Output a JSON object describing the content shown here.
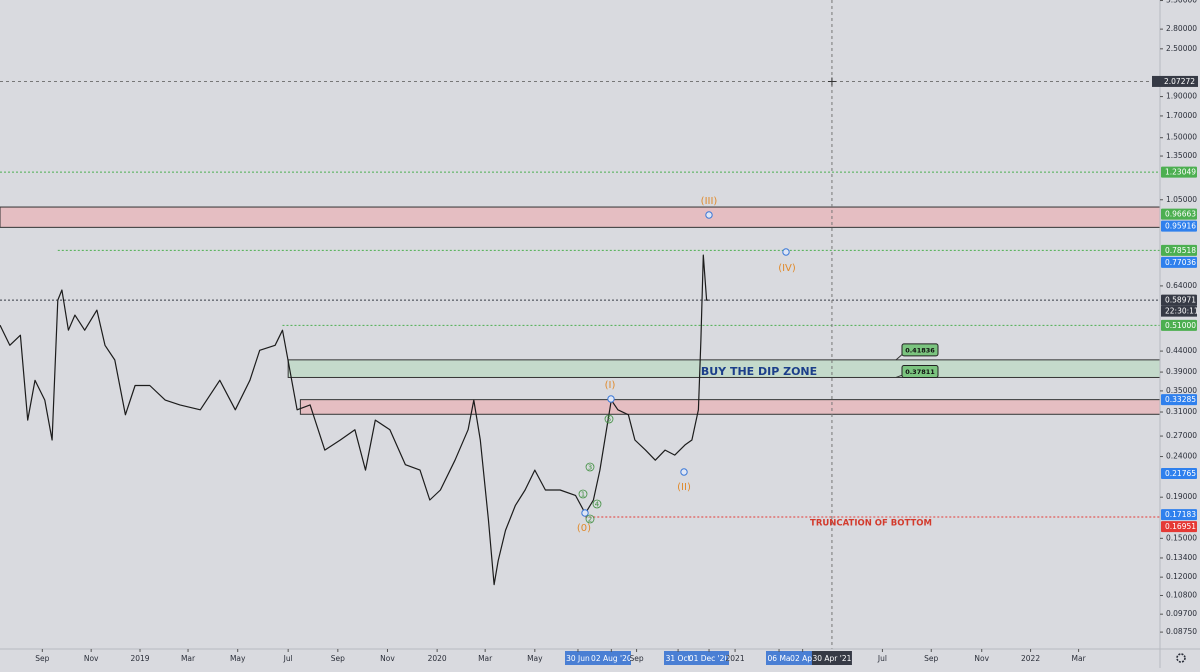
{
  "chart_data": {
    "type": "line",
    "log_scale": true,
    "color": "#1c1c1c",
    "xlim": [
      -172,
      1253
    ],
    "ylim": [
      0.0794,
      3.31
    ],
    "x": [
      -172,
      -160,
      -147,
      -138,
      -129,
      -117,
      -108,
      -101,
      -96,
      -88,
      -80,
      -68,
      -53,
      -43,
      -31,
      -18,
      -6,
      12,
      31,
      49,
      74,
      98,
      117,
      135,
      147,
      166,
      175,
      184,
      193,
      209,
      227,
      246,
      264,
      277,
      289,
      307,
      326,
      344,
      356,
      369,
      387,
      403,
      410,
      418,
      428,
      435,
      440,
      449,
      461,
      473,
      485,
      498,
      516,
      535,
      547,
      557,
      565,
      571,
      579,
      587,
      600,
      608,
      621,
      633,
      645,
      657,
      670,
      678,
      686,
      689,
      692,
      696,
      698
    ],
    "values": [
      0.511,
      0.455,
      0.482,
      0.296,
      0.372,
      0.332,
      0.264,
      0.59,
      0.625,
      0.496,
      0.541,
      0.496,
      0.557,
      0.455,
      0.418,
      0.305,
      0.361,
      0.361,
      0.332,
      0.323,
      0.314,
      0.372,
      0.314,
      0.372,
      0.442,
      0.455,
      0.496,
      0.395,
      0.314,
      0.323,
      0.249,
      0.264,
      0.28,
      0.222,
      0.296,
      0.28,
      0.229,
      0.222,
      0.187,
      0.198,
      0.235,
      0.28,
      0.332,
      0.264,
      0.167,
      0.115,
      0.132,
      0.157,
      0.181,
      0.198,
      0.222,
      0.198,
      0.198,
      0.192,
      0.173,
      0.187,
      0.222,
      0.264,
      0.332,
      0.314,
      0.305,
      0.264,
      0.249,
      0.235,
      0.249,
      0.242,
      0.257,
      0.264,
      0.314,
      0.469,
      0.764,
      0.59,
      0.59
    ],
    "xticks": [
      {
        "value": -120,
        "label": "Sep"
      },
      {
        "value": -60,
        "label": "Nov"
      },
      {
        "value": 0,
        "label": "2019"
      },
      {
        "value": 59,
        "label": "Mar"
      },
      {
        "value": 120,
        "label": "May"
      },
      {
        "value": 182,
        "label": "Jul"
      },
      {
        "value": 243,
        "label": "Sep"
      },
      {
        "value": 304,
        "label": "Nov"
      },
      {
        "value": 365,
        "label": "2020"
      },
      {
        "value": 424,
        "label": "Mar"
      },
      {
        "value": 485,
        "label": "May"
      },
      {
        "value": 538,
        "label": "30 Jun"
      },
      {
        "value": 579,
        "label": "02 Aug '20"
      },
      {
        "value": 610,
        "label": "Sep"
      },
      {
        "value": 661,
        "label": "31 Oct"
      },
      {
        "value": 699,
        "label": "01 Dec '20"
      },
      {
        "value": 731,
        "label": "2021"
      },
      {
        "value": 785,
        "label": "06 Ma"
      },
      {
        "value": 814,
        "label": "02 Apr"
      },
      {
        "value": 912,
        "label": "Jul"
      },
      {
        "value": 972,
        "label": "Sep"
      },
      {
        "value": 1034,
        "label": "Nov"
      },
      {
        "value": 1094,
        "label": "2022"
      },
      {
        "value": 1153,
        "label": "Mar"
      }
    ],
    "yticks": [
      {
        "value": 3.3,
        "label": "3.30000"
      },
      {
        "value": 2.8,
        "label": "2.80000"
      },
      {
        "value": 2.5,
        "label": "2.50000"
      },
      {
        "value": 1.9,
        "label": "1.90000"
      },
      {
        "value": 1.7,
        "label": "1.70000"
      },
      {
        "value": 1.5,
        "label": "1.50000"
      },
      {
        "value": 1.35,
        "label": "1.35000"
      },
      {
        "value": 1.05,
        "label": "1.05000"
      },
      {
        "value": 0.64,
        "label": "0.64000"
      },
      {
        "value": 0.44,
        "label": "0.44000"
      },
      {
        "value": 0.39,
        "label": "0.39000"
      },
      {
        "value": 0.35,
        "label": "0.35000"
      },
      {
        "value": 0.31,
        "label": "0.31000"
      },
      {
        "value": 0.27,
        "label": "0.27000"
      },
      {
        "value": 0.24,
        "label": "0.24000"
      },
      {
        "value": 0.19,
        "label": "0.19000"
      },
      {
        "value": 0.15,
        "label": "0.15000"
      },
      {
        "value": 0.134,
        "label": "0.13400"
      },
      {
        "value": 0.12,
        "label": "0.12000"
      },
      {
        "value": 0.108,
        "label": "0.10800"
      },
      {
        "value": 0.097,
        "label": "0.09700"
      },
      {
        "value": 0.0875,
        "label": "0.08750"
      }
    ],
    "levels": [
      {
        "value": 1.23049,
        "label": "1.23049",
        "color": "#4caf50",
        "line": true
      },
      {
        "value": 0.96663,
        "label": "0.96663",
        "color": "#4caf50",
        "line": false
      },
      {
        "value": 0.95916,
        "label": "0.95916",
        "color": "#2f80ed",
        "line": false
      },
      {
        "value": 0.78518,
        "label": "0.78518",
        "color": "#4caf50",
        "line": true,
        "x0": -101
      },
      {
        "value": 0.77036,
        "label": "0.77036",
        "color": "#2f80ed",
        "line": false
      },
      {
        "value": 0.58971,
        "label": "0.58971",
        "color": "#363a45",
        "line": true
      },
      {
        "value": 0.51,
        "label": "0.51000",
        "color": "#4caf50",
        "line": true,
        "x0": 175
      },
      {
        "value": 0.33285,
        "label": "0.33285",
        "color": "#2f80ed",
        "line": false
      },
      {
        "value": 0.21765,
        "label": "0.21765",
        "color": "#2f80ed",
        "line": false
      },
      {
        "value": 0.17183,
        "label": "0.17183",
        "color": "#2f80ed",
        "line": false
      },
      {
        "value": 0.16951,
        "label": "0.16951",
        "color": "#e53935",
        "line": true,
        "x0": 547
      }
    ],
    "countdown": "22:30:11",
    "zones": [
      {
        "low": 0.896,
        "high": 1.007,
        "color": "#e8b4b8"
      },
      {
        "low": 0.37811,
        "high": 0.41836,
        "color": "#bcd9c4",
        "x0": 182
      },
      {
        "low": 0.306,
        "high": 0.33285,
        "color": "#e8b4b8",
        "x0": 197
      }
    ],
    "callouts": [
      0.41836,
      0.37811
    ],
    "crosshair": {
      "x": 850,
      "y": 2.07272,
      "x_label": "30 Apr '21",
      "y_label": "2.07272"
    },
    "annotations": {
      "buy_zone": "BUY THE DIP ZONE",
      "truncation": "TRUNCATION OF BOTTOM",
      "waves": [
        "(0)",
        "(I)",
        "(II)",
        "(III)",
        "(IV)"
      ],
      "minor_waves": [
        "1",
        "2",
        "3",
        "4",
        "5"
      ]
    }
  }
}
